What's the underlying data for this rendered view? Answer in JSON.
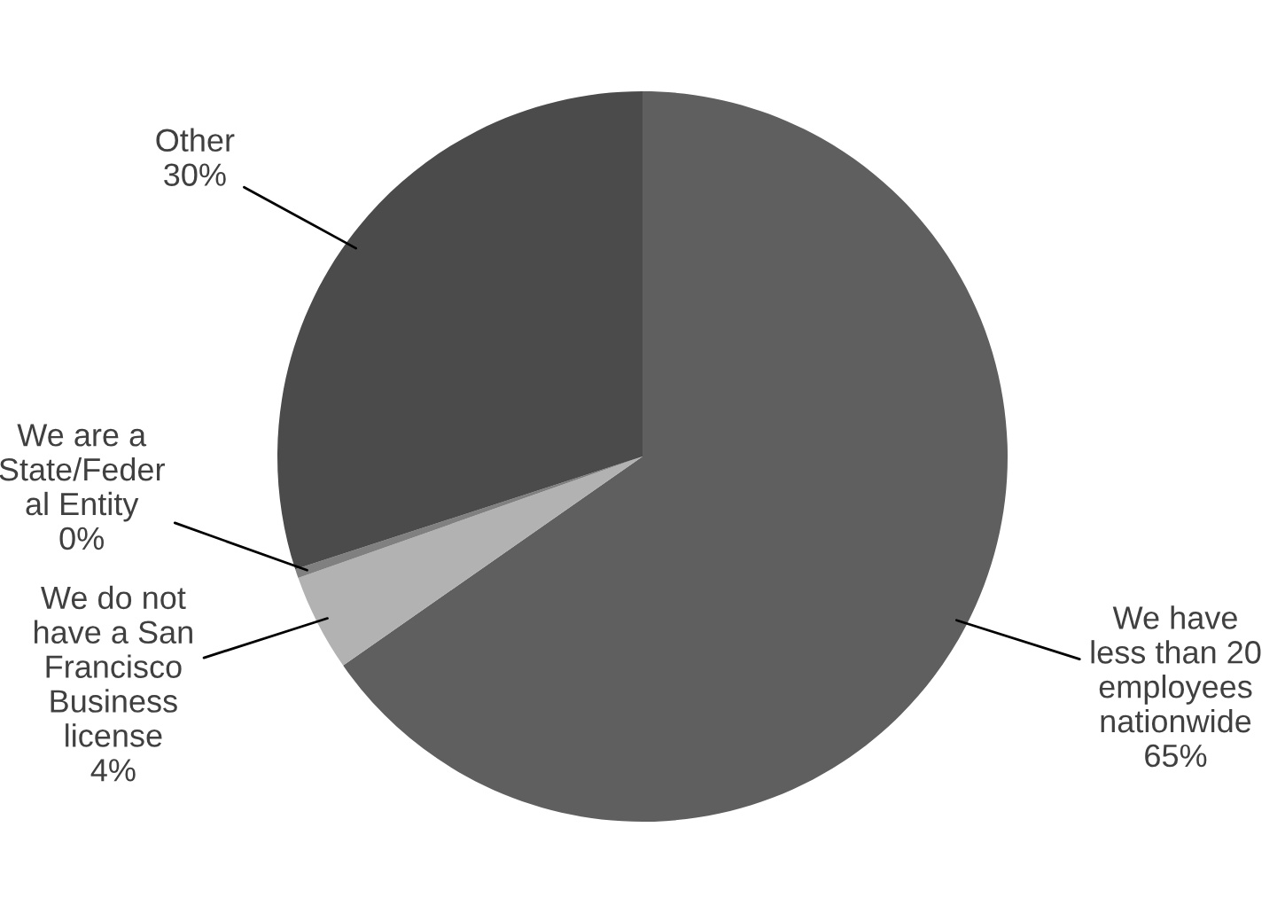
{
  "chart_data": {
    "type": "pie",
    "categories": [
      "We have\nless than 20\nemployees\nnationwide",
      "We do not\nhave a San\nFrancisco\nBusiness\nlicense",
      "We are a\nState/Feder\nal Entity",
      "Other"
    ],
    "values": [
      65.3,
      4.3,
      0.4,
      30.0
    ],
    "value_labels": [
      "65%",
      "4%",
      "0%",
      "30%"
    ],
    "colors": [
      "#5f5f5f",
      "#b2b2b2",
      "#808080",
      "#4b4b4b"
    ],
    "legend": false
  }
}
